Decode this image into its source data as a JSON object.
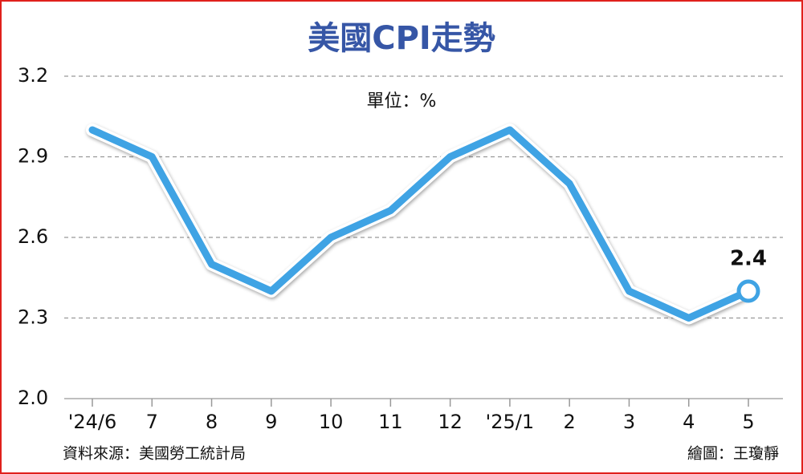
{
  "chart_data": {
    "type": "line",
    "title": "美國CPI走勢",
    "unit_label": "單位：%",
    "categories": [
      "'24/6",
      "7",
      "8",
      "9",
      "10",
      "11",
      "12",
      "'25/1",
      "2",
      "3",
      "4",
      "5"
    ],
    "values": [
      3.0,
      2.9,
      2.5,
      2.4,
      2.6,
      2.7,
      2.9,
      3.0,
      2.8,
      2.4,
      2.3,
      2.4
    ],
    "color": "#3fa3e4",
    "ylim": [
      2.0,
      3.2
    ],
    "yticks": [
      {
        "value": 2,
        "label": "2.0"
      },
      2.3,
      2.6,
      2.9,
      3.2
    ],
    "grid": true,
    "source": "資料來源：美國勞工統計局",
    "credit": "繪圖：王瓊靜"
  }
}
